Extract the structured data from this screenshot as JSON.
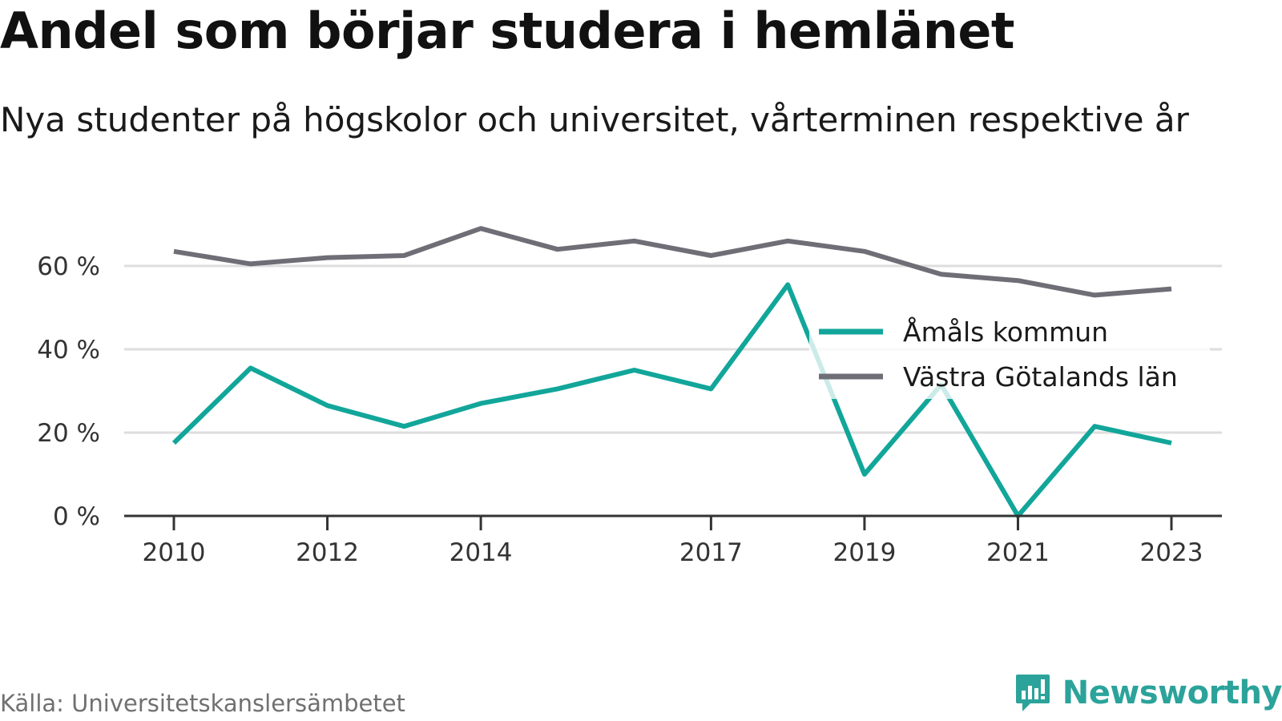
{
  "title": "Andel som börjar studera i hemlänet",
  "subtitle": "Nya studenter på högskolor och universitet, vårterminen respektive år",
  "source": "Källa: Universitetskanslersämbetet",
  "brand": "Newsworthy",
  "colors": {
    "amal": "#12a69a",
    "vg": "#6f6e76",
    "grid": "#dedede",
    "axis": "#333333",
    "brand": "#2ba39a"
  },
  "chart_data": {
    "type": "line",
    "x": [
      2010,
      2011,
      2012,
      2013,
      2014,
      2015,
      2016,
      2017,
      2018,
      2019,
      2020,
      2021,
      2022,
      2023
    ],
    "x_tick_labels": [
      "2010",
      "2012",
      "2014",
      "2017",
      "2019",
      "2021",
      "2023"
    ],
    "y_ticks": [
      0,
      20,
      40,
      60
    ],
    "y_tick_labels": [
      "0 %",
      "20 %",
      "40 %",
      "60 %"
    ],
    "ylim": [
      0,
      70
    ],
    "grid": true,
    "legend_position": "right",
    "series": [
      {
        "name": "Åmåls kommun",
        "color": "#12a69a",
        "values": [
          17.5,
          35.5,
          26.5,
          21.5,
          27,
          30.5,
          35,
          30.5,
          55.5,
          10,
          31.5,
          0,
          21.5,
          17.5
        ]
      },
      {
        "name": "Västra Götalands län",
        "color": "#6f6e76",
        "values": [
          63.5,
          60.5,
          62,
          62.5,
          69,
          64,
          66,
          62.5,
          66,
          63.5,
          58,
          56.5,
          53,
          54.5
        ]
      }
    ]
  }
}
